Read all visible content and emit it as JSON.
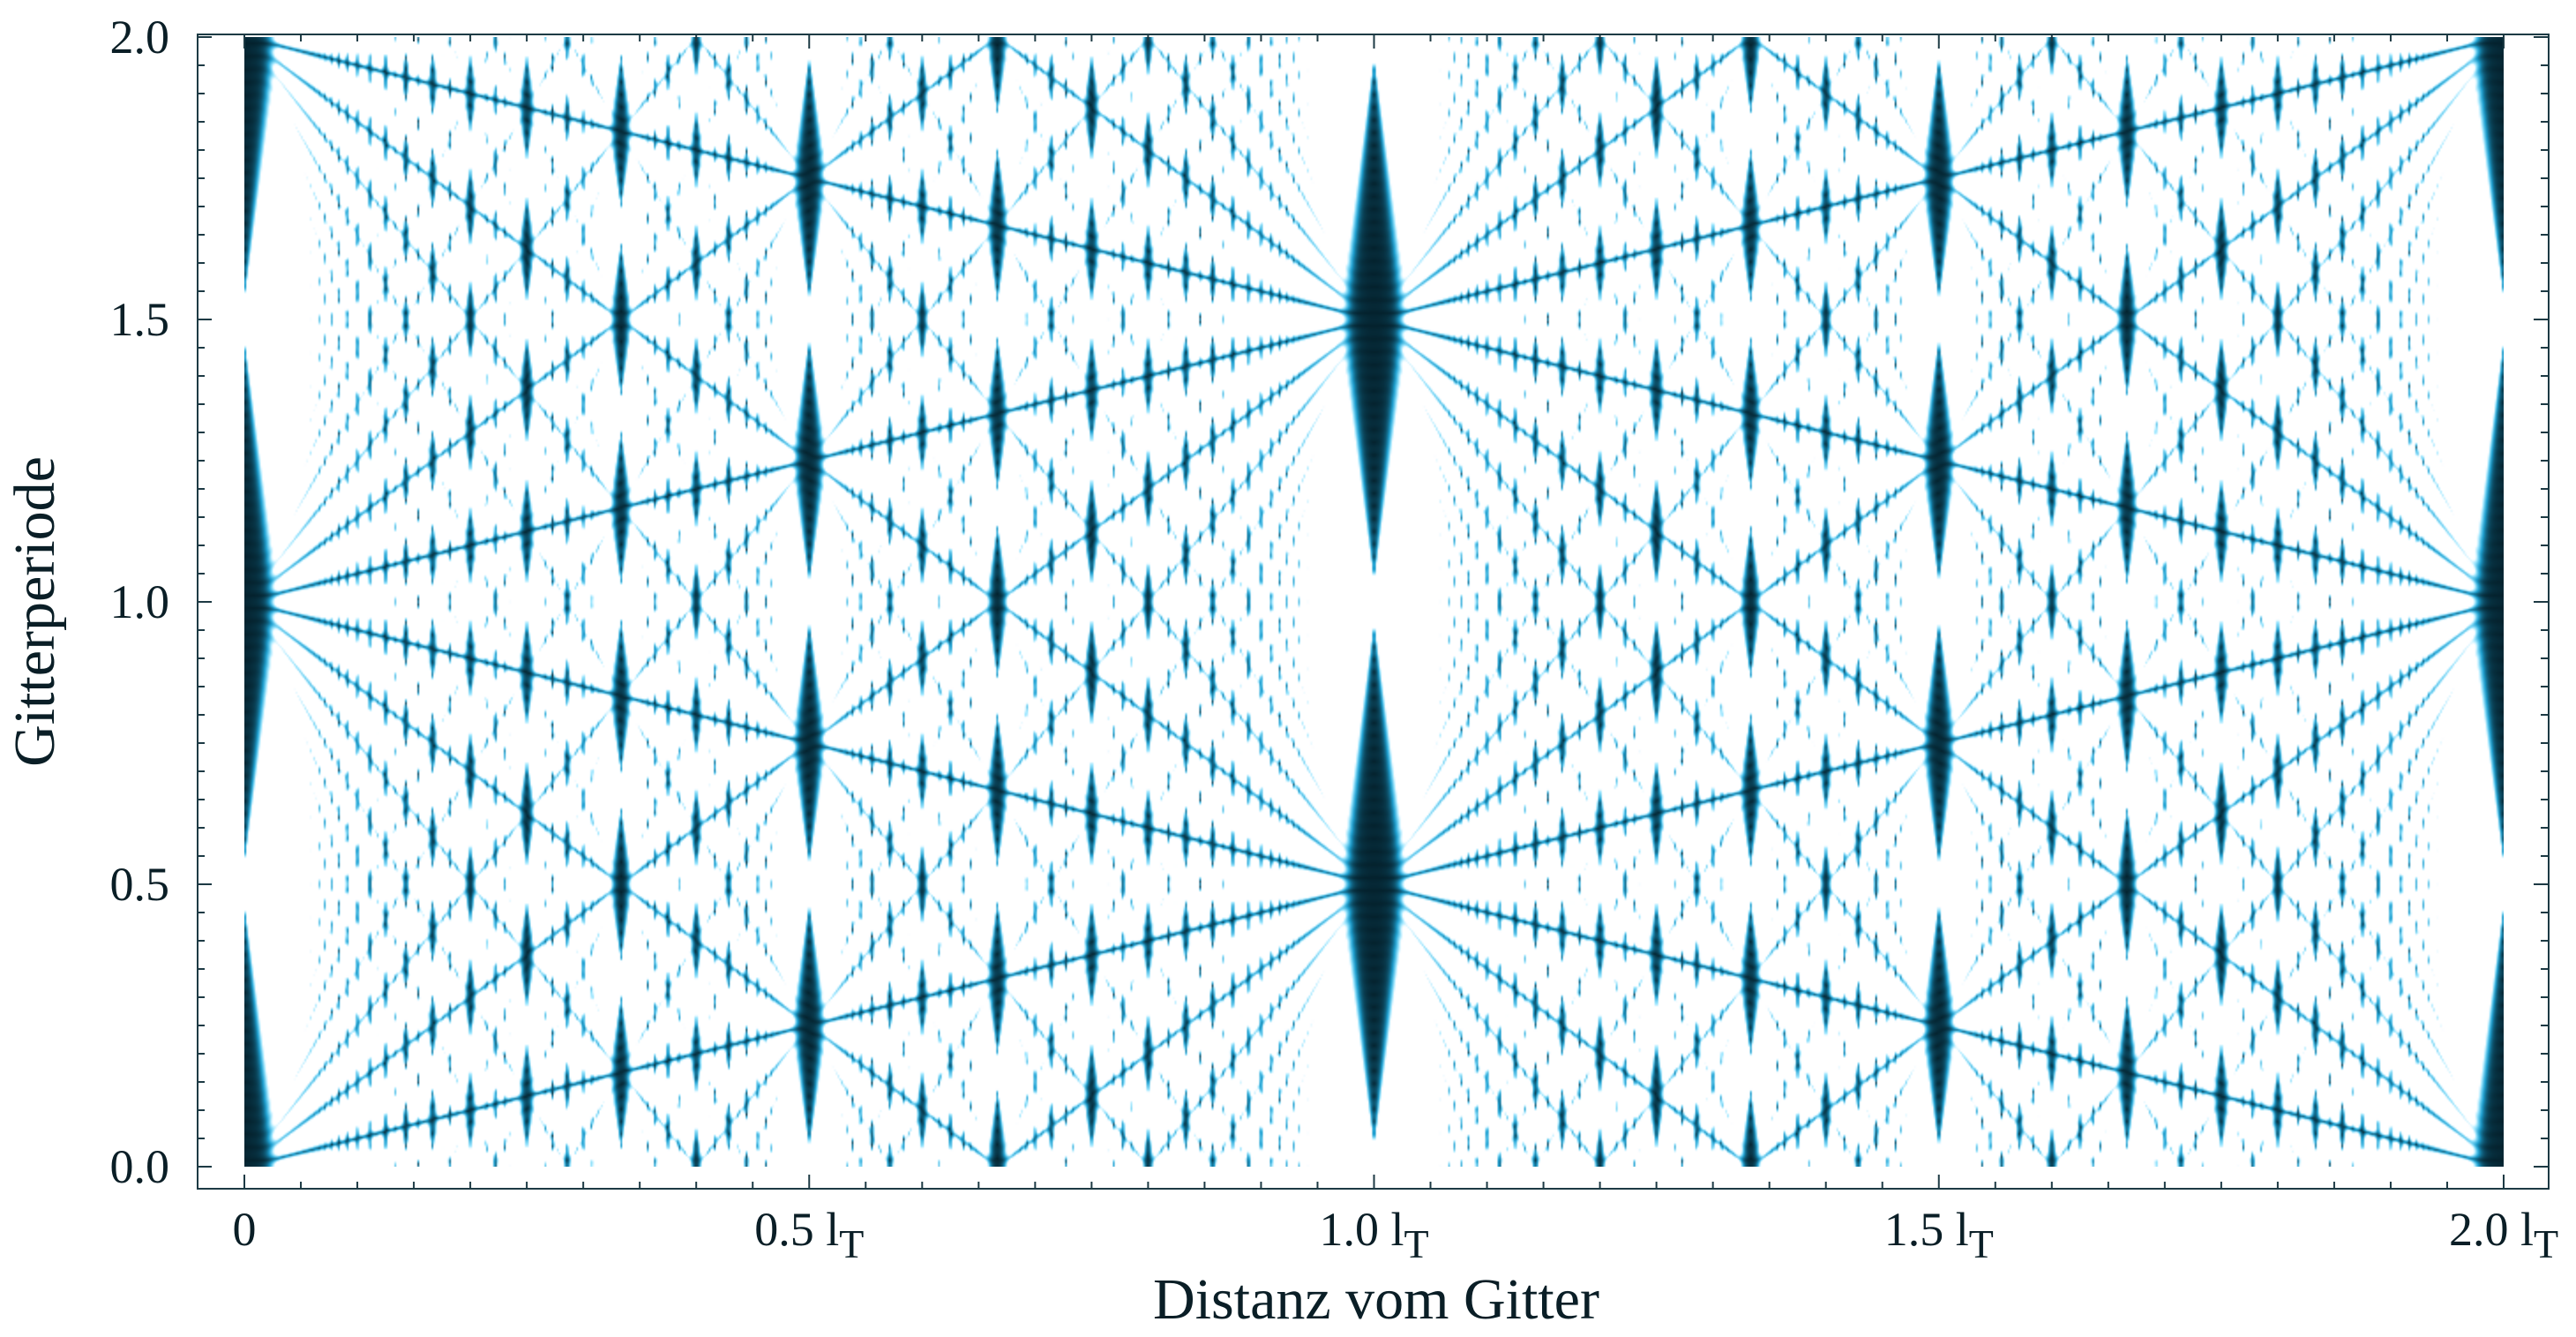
{
  "chart_data": {
    "type": "heatmap",
    "title": "",
    "xlabel": "Distanz vom Gitter",
    "ylabel": "Gitterperiode",
    "xlim": [
      0,
      2.0
    ],
    "ylim": [
      0,
      2.0
    ],
    "x_unit_symbol": "l",
    "x_unit_subscript": "T",
    "x_ticks": [
      {
        "value": 0,
        "num": "0",
        "unit": false
      },
      {
        "value": 0.5,
        "num": "0.5 ",
        "unit": true
      },
      {
        "value": 1.0,
        "num": "1.0 ",
        "unit": true
      },
      {
        "value": 1.5,
        "num": "1.5 ",
        "unit": true
      },
      {
        "value": 2.0,
        "num": "2.0 ",
        "unit": true
      }
    ],
    "y_ticks": [
      {
        "value": 0.0,
        "label": "0.0"
      },
      {
        "value": 0.5,
        "label": "0.5"
      },
      {
        "value": 1.0,
        "label": "1.0"
      },
      {
        "value": 1.5,
        "label": "1.5"
      },
      {
        "value": 2.0,
        "label": "2.0"
      }
    ],
    "colormap": {
      "dark": "#04202b",
      "mid": "#1c9fd0",
      "bright": "#9be6ff",
      "peak": "#ffffff"
    },
    "grid": false,
    "legend": "none",
    "description_of_pattern": "Talbot carpet: intensity revivals at integer and half-integer multiples of the Talbot length"
  }
}
